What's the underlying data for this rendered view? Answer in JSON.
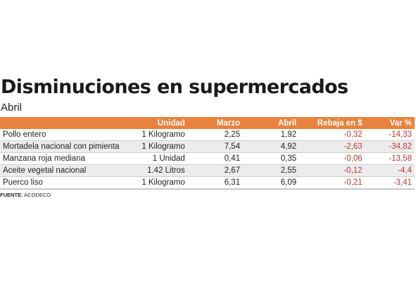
{
  "title": "Disminuciones en supermercados",
  "subtitle": "Abril",
  "table": {
    "headers": [
      "",
      "Unidad",
      "Marzo",
      "Abril",
      "Rebaja en $",
      "Var %"
    ],
    "rows": [
      {
        "producto": "Pollo entero",
        "unidad": "1 Kilogramo",
        "marzo": "2,25",
        "abril": "1,92",
        "rebaja": "-0,32",
        "var": "-14,33"
      },
      {
        "producto": "Mortadela nacional con pimienta",
        "unidad": "1 Kilogramo",
        "marzo": "7,54",
        "abril": "4,92",
        "rebaja": "-2,63",
        "var": "-34,82"
      },
      {
        "producto": "Manzana roja mediana",
        "unidad": "1 Unidad",
        "marzo": "0,41",
        "abril": "0,35",
        "rebaja": "-0,06",
        "var": "-13,58"
      },
      {
        "producto": "Aceite vegetal nacional",
        "unidad": "1.42 Litros",
        "marzo": "2,67",
        "abril": "2,55",
        "rebaja": "-0,12",
        "var": "-4,4"
      },
      {
        "producto": "Puerco liso",
        "unidad": "1 Kilogramo",
        "marzo": "6,31",
        "abril": "6,09",
        "rebaja": "-0,21",
        "var": "-3,41"
      }
    ]
  },
  "source": {
    "label": "FUENTE:",
    "value": "ACODECO"
  },
  "colors": {
    "header_bg": "#e8823c",
    "negative": "#c0392b",
    "row_alt": "#ececec"
  }
}
